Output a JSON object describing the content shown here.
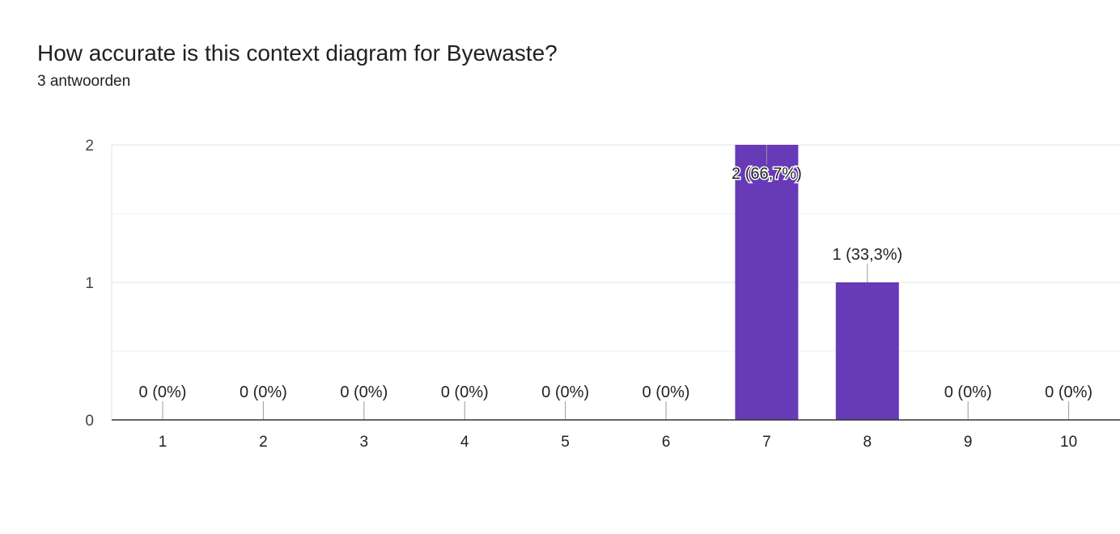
{
  "question_title": "How accurate is this context diagram for Byewaste?",
  "response_count": "3 antwoorden",
  "colors": {
    "bar": "#673ab7",
    "gridline": "#e8e8e8",
    "axis": "#333333",
    "leader": "#999999"
  },
  "chart_data": {
    "type": "bar",
    "categories": [
      "1",
      "2",
      "3",
      "4",
      "5",
      "6",
      "7",
      "8",
      "9",
      "10"
    ],
    "values": [
      0,
      0,
      0,
      0,
      0,
      0,
      2,
      1,
      0,
      0
    ],
    "data_labels": [
      "0 (0%)",
      "0 (0%)",
      "0 (0%)",
      "0 (0%)",
      "0 (0%)",
      "0 (0%)",
      "2 (66,7%)",
      "1 (33,3%)",
      "0 (0%)",
      "0 (0%)"
    ],
    "y_ticks": [
      "0",
      "1",
      "2"
    ],
    "ylim": [
      0,
      2
    ],
    "grid": true
  }
}
